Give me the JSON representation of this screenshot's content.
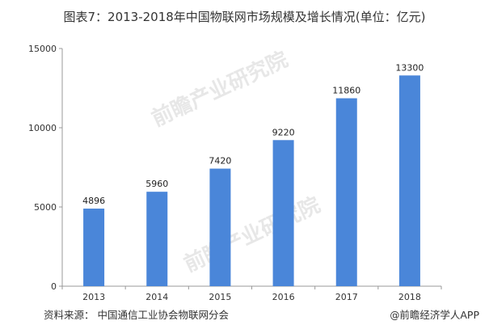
{
  "chart_data": {
    "type": "bar",
    "title": "图表7：2013-2018年中国物联网市场规模及增长情况(单位：亿元)",
    "categories": [
      "2013",
      "2014",
      "2015",
      "2016",
      "2017",
      "2018"
    ],
    "values": [
      4896,
      5960,
      7420,
      9220,
      11860,
      13300
    ],
    "data_labels": [
      "4896",
      "5960",
      "7420",
      "9220",
      "11860",
      "13300"
    ],
    "ylim": [
      0,
      15000
    ],
    "yticks": [
      0,
      5000,
      10000,
      15000
    ],
    "ytick_labels": [
      "0",
      "5000",
      "10000",
      "15000"
    ],
    "bar_color": "#4a86d9",
    "grid": false,
    "legend": "none"
  },
  "footer": {
    "source": "资料来源：  中国通信工业协会物联网分会",
    "credit": "前瞻经济学人APP",
    "credit_prefix": "@"
  },
  "watermark": {
    "text": "前瞻产业研究院"
  }
}
